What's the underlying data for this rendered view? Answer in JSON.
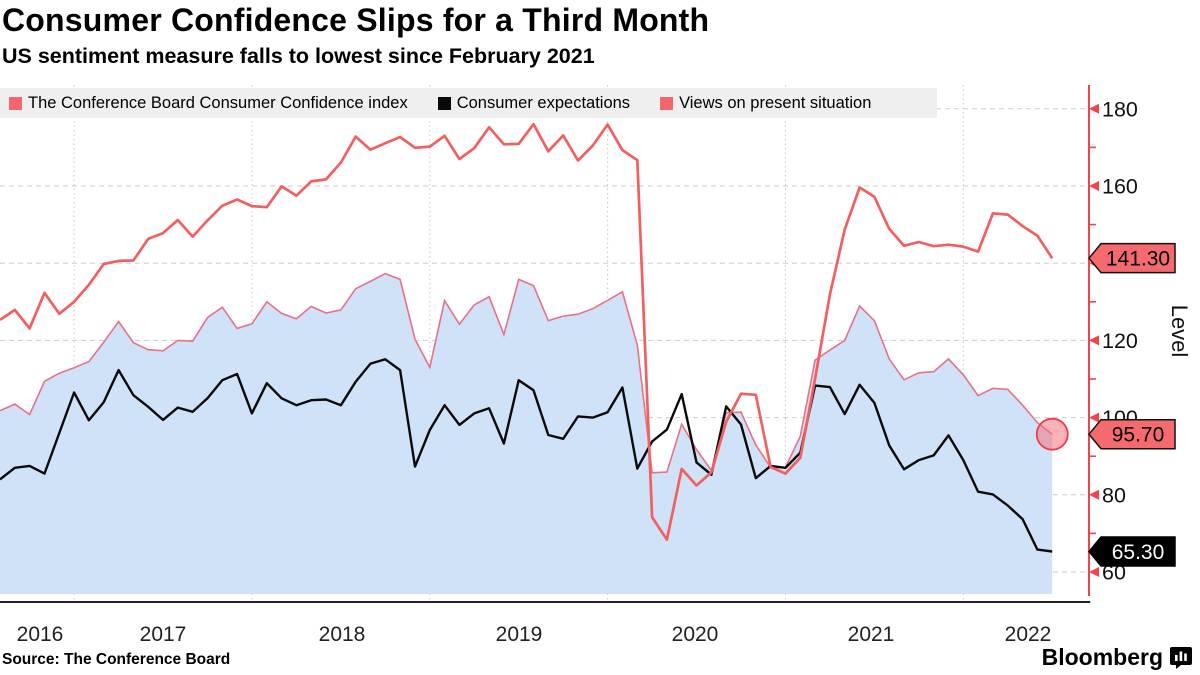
{
  "header": {
    "title": "Consumer Confidence Slips for a Third Month",
    "subtitle": "US sentiment measure falls to lowest since February 2021"
  },
  "legend": {
    "items": [
      {
        "label": "The Conference Board Consumer Confidence index",
        "color": "#f5656d"
      },
      {
        "label": "Consumer expectations",
        "color": "#0a0a0a"
      },
      {
        "label": "Views on present situation",
        "color": "#f5656d"
      }
    ]
  },
  "y_axis": {
    "label": "Level",
    "major_ticks": [
      60,
      80,
      100,
      120,
      140,
      160,
      180
    ],
    "minor_ticks": [
      70,
      90,
      110,
      130,
      150,
      170
    ],
    "axis_color": "#f0434b",
    "tick_text_color": "#111111"
  },
  "x_axis": {
    "year_labels": [
      "2016",
      "2017",
      "2018",
      "2019",
      "2020",
      "2021",
      "2022"
    ]
  },
  "annotations": {
    "last_values": [
      {
        "series": "Views on present situation",
        "text": "141.30",
        "value": 141.3,
        "bg": "#f56a6e",
        "text_color": "#000000",
        "border": "#111111"
      },
      {
        "series": "The Conference Board Consumer Confidence index",
        "text": "95.70",
        "value": 95.7,
        "bg": "#f56a6e",
        "text_color": "#000000",
        "border": "#111111"
      },
      {
        "series": "Consumer expectations",
        "text": "65.30",
        "value": 65.3,
        "bg": "#000000",
        "text_color": "#ffffff",
        "border": "#000000"
      }
    ],
    "end_marker": {
      "series": "The Conference Board Consumer Confidence index",
      "fill": "#f4737c",
      "stroke": "#ee3c4c"
    }
  },
  "footer": {
    "source": "Source: The Conference Board",
    "brand": "Bloomberg"
  },
  "chart_data": {
    "type": "line",
    "title": "Consumer Confidence Slips for a Third Month",
    "ylabel": "Level",
    "ylim": [
      54,
      186
    ],
    "grid": true,
    "legend_position": "top",
    "frequency": "monthly",
    "x": [
      "2016-08",
      "2016-09",
      "2016-10",
      "2016-11",
      "2016-12",
      "2017-01",
      "2017-02",
      "2017-03",
      "2017-04",
      "2017-05",
      "2017-06",
      "2017-07",
      "2017-08",
      "2017-09",
      "2017-10",
      "2017-11",
      "2017-12",
      "2018-01",
      "2018-02",
      "2018-03",
      "2018-04",
      "2018-05",
      "2018-06",
      "2018-07",
      "2018-08",
      "2018-09",
      "2018-10",
      "2018-11",
      "2018-12",
      "2019-01",
      "2019-02",
      "2019-03",
      "2019-04",
      "2019-05",
      "2019-06",
      "2019-07",
      "2019-08",
      "2019-09",
      "2019-10",
      "2019-11",
      "2019-12",
      "2020-01",
      "2020-02",
      "2020-03",
      "2020-04",
      "2020-05",
      "2020-06",
      "2020-07",
      "2020-08",
      "2020-09",
      "2020-10",
      "2020-11",
      "2020-12",
      "2021-01",
      "2021-02",
      "2021-03",
      "2021-04",
      "2021-05",
      "2021-06",
      "2021-07",
      "2021-08",
      "2021-09",
      "2021-10",
      "2021-11",
      "2021-12",
      "2022-01",
      "2022-02",
      "2022-03",
      "2022-04",
      "2022-05",
      "2022-06",
      "2022-07"
    ],
    "series": [
      {
        "name": "The Conference Board Consumer Confidence index",
        "color": "#e87183",
        "area_fill": "#d0e2f7",
        "line_width": 1.6,
        "end_label": "95.70",
        "values": [
          101.8,
          103.5,
          100.8,
          109.4,
          111.5,
          112.9,
          114.5,
          119.5,
          124.9,
          119.4,
          117.6,
          117.3,
          120.0,
          119.8,
          125.9,
          128.6,
          123.1,
          124.3,
          130.0,
          127.0,
          125.6,
          128.8,
          127.1,
          127.9,
          133.4,
          135.3,
          137.3,
          135.8,
          120.3,
          113.0,
          130.3,
          124.2,
          129.2,
          131.3,
          121.5,
          135.8,
          134.2,
          125.1,
          126.3,
          126.8,
          128.2,
          130.4,
          132.6,
          118.8,
          85.7,
          85.9,
          98.3,
          91.7,
          86.3,
          101.3,
          101.4,
          92.9,
          87.1,
          87.1,
          95.2,
          114.9,
          117.5,
          120.0,
          128.9,
          125.1,
          115.2,
          109.8,
          111.6,
          111.9,
          115.2,
          111.1,
          105.7,
          107.6,
          107.3,
          103.2,
          98.7,
          95.7
        ]
      },
      {
        "name": "Consumer expectations",
        "color": "#0a0a0a",
        "line_width": 2.4,
        "end_label": "65.30",
        "values": [
          84.0,
          87.0,
          87.5,
          85.5,
          96.0,
          106.5,
          99.3,
          104.0,
          112.3,
          105.8,
          102.8,
          99.4,
          102.6,
          101.5,
          105.0,
          109.7,
          111.3,
          101.1,
          108.9,
          105.0,
          103.2,
          104.5,
          104.7,
          103.2,
          109.3,
          114.0,
          115.1,
          112.3,
          87.3,
          96.8,
          103.2,
          98.1,
          101.1,
          102.4,
          93.3,
          109.7,
          107.1,
          95.5,
          94.5,
          100.3,
          100.0,
          101.4,
          107.8,
          86.8,
          93.8,
          96.9,
          106.1,
          88.4,
          85.2,
          102.9,
          98.2,
          84.3,
          87.5,
          87.0,
          90.9,
          108.3,
          107.9,
          100.9,
          108.5,
          103.8,
          92.8,
          86.6,
          89.0,
          90.2,
          95.4,
          89.0,
          80.8,
          80.1,
          77.2,
          73.7,
          65.8,
          65.3
        ]
      },
      {
        "name": "Views on present situation",
        "color": "#f25f60",
        "line_width": 2.7,
        "end_label": "141.30",
        "values": [
          125.3,
          127.9,
          123.1,
          132.3,
          126.9,
          130.0,
          134.4,
          139.8,
          140.6,
          140.7,
          146.3,
          147.8,
          151.2,
          146.9,
          151.1,
          154.9,
          156.5,
          154.8,
          154.5,
          159.9,
          157.5,
          161.2,
          161.7,
          166.1,
          172.8,
          169.4,
          171.1,
          172.7,
          169.9,
          170.2,
          173.0,
          167.0,
          169.8,
          175.2,
          170.8,
          170.9,
          176.0,
          169.0,
          173.1,
          166.6,
          170.5,
          175.9,
          169.3,
          166.7,
          74.2,
          68.4,
          86.7,
          82.4,
          85.8,
          98.9,
          106.2,
          105.9,
          87.2,
          85.5,
          89.6,
          110.1,
          131.9,
          148.7,
          159.6,
          157.2,
          148.9,
          144.5,
          145.5,
          144.4,
          144.8,
          144.3,
          143.0,
          152.9,
          152.6,
          149.6,
          147.1,
          141.3
        ]
      }
    ]
  }
}
